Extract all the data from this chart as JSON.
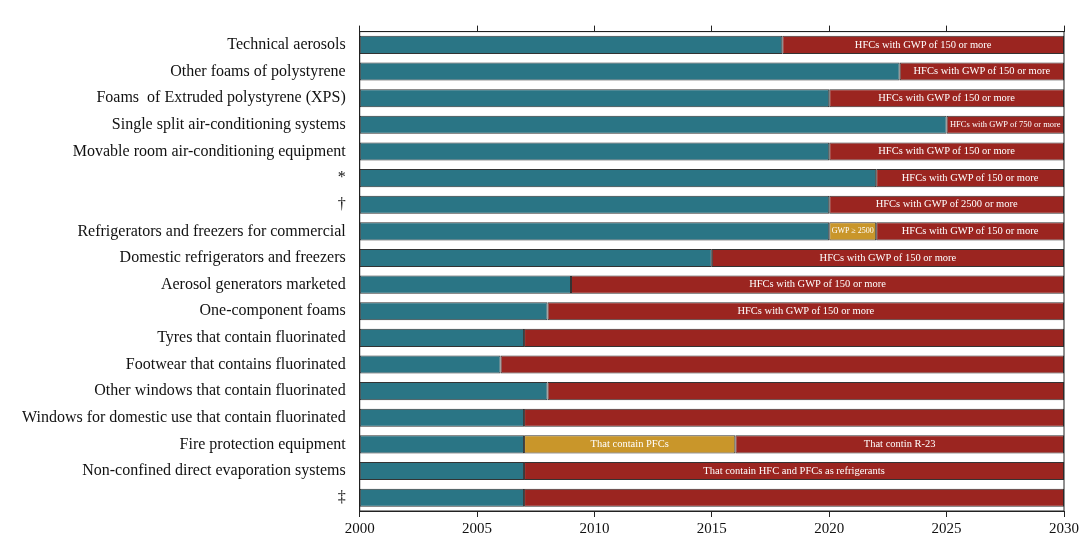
{
  "chart_data": {
    "type": "bar",
    "orientation": "horizontal",
    "categories": [
      "Technical aerosols",
      "Other foams of polystyrene",
      "Foams  of Extruded polystyrene (XPS)",
      "Single split air-conditioning systems",
      "Movable room air-conditioning equipment",
      "*",
      "†",
      "Refrigerators and freezers for commercial",
      "Domestic refrigerators and freezers",
      "Aerosol generators marketed",
      "One-component foams",
      "Tyres that contain fluorinated",
      "Footwear that contains fluorinated",
      "Other windows that contain fluorinated",
      "Windows for domestic use that contain fluorinated",
      "Fire protection equipment",
      "Non-confined direct evaporation systems",
      "‡"
    ],
    "series": [
      {
        "color": "#2a7585",
        "base": [
          2000,
          2000,
          2000,
          2000,
          2000,
          2000,
          2000,
          2000,
          2000,
          2000,
          2000,
          2000,
          2000,
          2000,
          2000,
          2000,
          2000,
          2000
        ],
        "values": [
          18,
          23,
          20,
          25,
          20,
          22,
          20,
          20,
          15,
          9,
          8,
          7,
          6,
          8,
          7,
          7,
          7,
          7
        ]
      },
      {
        "color": "#c9962a",
        "base": [
          null,
          null,
          null,
          null,
          null,
          null,
          null,
          2020,
          null,
          null,
          null,
          null,
          null,
          null,
          null,
          2007,
          null,
          null
        ],
        "values": [
          null,
          null,
          null,
          null,
          null,
          null,
          null,
          2,
          null,
          null,
          null,
          null,
          null,
          null,
          null,
          9,
          null,
          null
        ],
        "value_labels": [
          null,
          null,
          null,
          null,
          null,
          null,
          null,
          "GWP ≥ 2500",
          null,
          null,
          null,
          null,
          null,
          null,
          null,
          "That contain PFCs",
          null,
          null
        ]
      },
      {
        "color": "#9b2520",
        "base": [
          2018,
          2023,
          2020,
          2025,
          2020,
          2022,
          2020,
          2022,
          2015,
          2009,
          2008,
          2007,
          2006,
          2008,
          2007,
          2016,
          2007,
          2007
        ],
        "values": [
          12,
          7,
          10,
          5,
          10,
          8,
          10,
          8,
          15,
          21,
          22,
          23,
          24,
          22,
          23,
          14,
          23,
          23
        ],
        "value_labels": [
          "HFCs with GWP of 150 or more",
          "HFCs with GWP of 150 or more",
          "HFCs with GWP of 150 or more",
          "HFCs with GWP of 750 or more",
          "HFCs with GWP of 150 or more",
          "HFCs with GWP of 150 or more",
          "HFCs with GWP of 2500 or more",
          "HFCs with GWP of 150 or more",
          "HFCs with GWP of 150 or more",
          "HFCs with GWP of 150 or more",
          "HFCs with GWP of 150 or more",
          null,
          null,
          null,
          null,
          "That contin R-23",
          "That contain HFC and PFCs as refrigerants",
          null
        ]
      }
    ],
    "xlim": [
      2000,
      2030
    ],
    "xticks": [
      2000,
      2005,
      2010,
      2015,
      2020,
      2025,
      2030
    ],
    "grid": false,
    "legend": false
  }
}
